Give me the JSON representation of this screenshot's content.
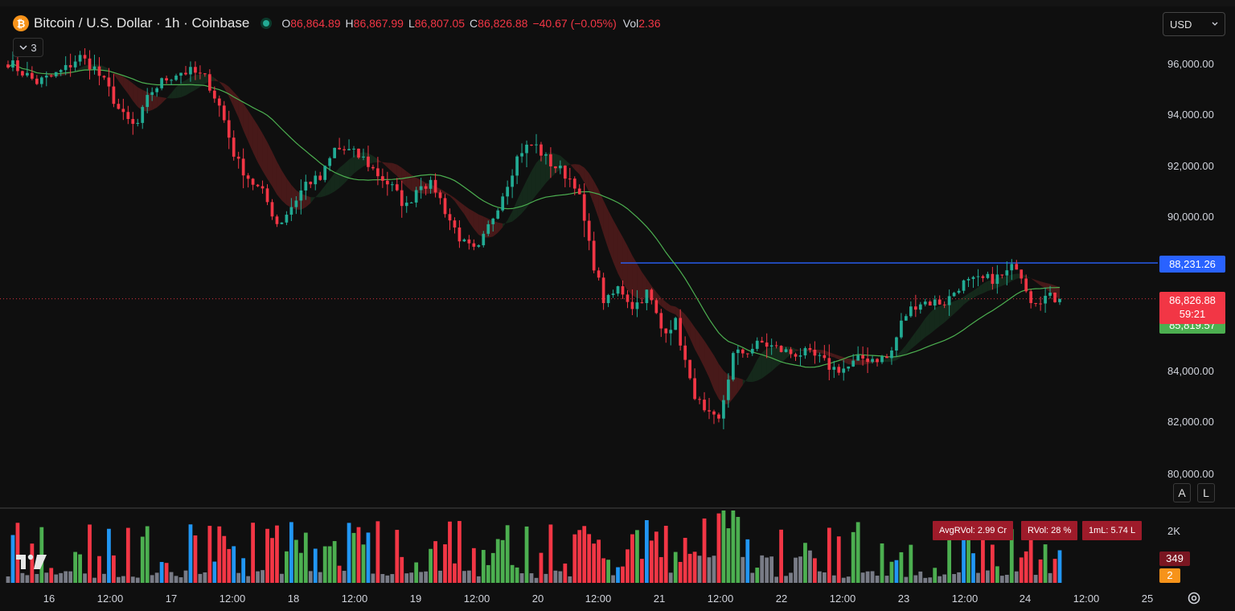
{
  "header": {
    "symbol": "Bitcoin / U.S. Dollar · 1h · Coinbase",
    "btc_symbol": "₿",
    "ohlc": [
      {
        "label": "O",
        "value": "86,864.89"
      },
      {
        "label": "H",
        "value": "86,867.99"
      },
      {
        "label": "L",
        "value": "86,807.05"
      },
      {
        "label": "C",
        "value": "86,826.88"
      }
    ],
    "change": "−40.67 (−0.05%)",
    "volume": {
      "label": "Vol",
      "value": "2.36"
    },
    "indicators_collapsed_count": "3",
    "indicators_toggle_icon": "chevron-down-icon",
    "currency": "USD",
    "currency_dropdown_icon": "chevron-down-icon"
  },
  "price_axis": {
    "ticks": [
      "96,000.00",
      "94,000.00",
      "92,000.00",
      "90,000.00",
      "84,000.00",
      "82,000.00",
      "80,000.00"
    ],
    "badges": {
      "horizontal_line": "88,231.26",
      "last_price": "86,826.88",
      "countdown": "59:21",
      "ma_value": "85,819.57"
    },
    "buttons": [
      "A",
      "L"
    ]
  },
  "volume_pane": {
    "labels": [
      "AvgRVol: 2.99 Cr",
      "RVol: 28 %",
      "1mL: 5.74 L"
    ],
    "axis_tick": "2K",
    "badges": [
      "349",
      "2"
    ]
  },
  "time_axis": {
    "ticks": [
      "16",
      "12:00",
      "17",
      "12:00",
      "18",
      "12:00",
      "19",
      "12:00",
      "20",
      "12:00",
      "21",
      "12:00",
      "22",
      "12:00",
      "23",
      "12:00",
      "24",
      "12:00",
      "25"
    ]
  },
  "colors": {
    "background": "#0f0f0f",
    "up": "#22ab94",
    "down": "#f23645",
    "ma_line": "#4caf50",
    "horizontal_line": "#2962ff",
    "volume_up": "#4caf50",
    "volume_down": "#f23645",
    "volume_neutral": "#787b86",
    "volume_high": "#2196f3"
  },
  "chart_data": {
    "type": "line",
    "ylim": [
      80000,
      96800
    ],
    "horizontal_line": 88231.26,
    "last_price": 86826.88,
    "close": [
      96100,
      95700,
      95300,
      95500,
      95800,
      96300,
      95900,
      95100,
      94000,
      93500,
      94900,
      95400,
      95700,
      95700,
      95400,
      94200,
      92300,
      91500,
      90900,
      89700,
      90500,
      91400,
      91500,
      92700,
      92600,
      92300,
      91700,
      91200,
      90400,
      91400,
      91200,
      90000,
      89000,
      88600,
      89900,
      91200,
      92600,
      92900,
      92200,
      91800,
      91300,
      88600,
      86600,
      87300,
      86500,
      87100,
      85600,
      85900,
      83500,
      82300,
      82000,
      84600,
      84800,
      85100,
      84900,
      84700,
      84700,
      84500,
      84100,
      84100,
      84500,
      84500,
      84500,
      86100,
      86700,
      86700,
      86700,
      87400,
      87500,
      87600,
      87700,
      88200,
      86800,
      86900,
      86800
    ]
  }
}
